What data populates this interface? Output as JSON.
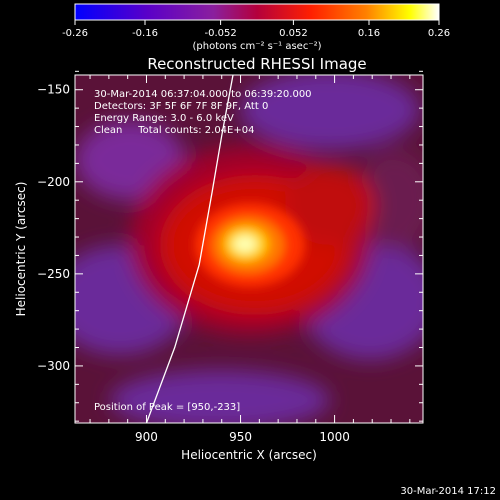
{
  "chart_data": {
    "type": "heatmap",
    "title": "Reconstructed RHESSI Image",
    "xlabel": "Heliocentric X (arcsec)",
    "ylabel": "Heliocentric Y (arcsec)",
    "xlim": [
      862,
      1047
    ],
    "ylim": [
      -331,
      -142
    ],
    "x_ticks": [
      900,
      950,
      1000
    ],
    "y_ticks": [
      -150,
      -200,
      -250,
      -300
    ],
    "colorbar": {
      "min": -0.26,
      "max": 0.26,
      "ticks": [
        "-0.26",
        "-0.16",
        "-0.052",
        "0.052",
        "0.16",
        "0.26"
      ],
      "units_label": "(photons cm⁻² s⁻¹ asec⁻²)"
    },
    "annotations": [
      "30-Mar-2014 06:37:04.000 to 06:39:20.000",
      "Detectors: 3F 5F 6F 7F 8F 9F, Att 0",
      "Energy Range: 3.0 - 6.0 keV",
      "Clean     Total counts: 2.04E+04"
    ],
    "peak_label": "Position of Peak = [950,-233]",
    "peak": {
      "x": 950,
      "y": -233,
      "value": 0.26
    },
    "limb_curve": [
      [
        900,
        -331
      ],
      [
        915,
        -290
      ],
      [
        928,
        -245
      ],
      [
        935,
        -205
      ],
      [
        940,
        -175
      ],
      [
        946,
        -142
      ]
    ],
    "footer_date": "30-Mar-2014 17:12"
  },
  "colors": {
    "background": "#000000",
    "colormap": [
      "#0000ff",
      "#5a00c8",
      "#8a1f9e",
      "#b4003c",
      "#ff2000",
      "#ff8000",
      "#ffff00",
      "#ffffff"
    ]
  }
}
